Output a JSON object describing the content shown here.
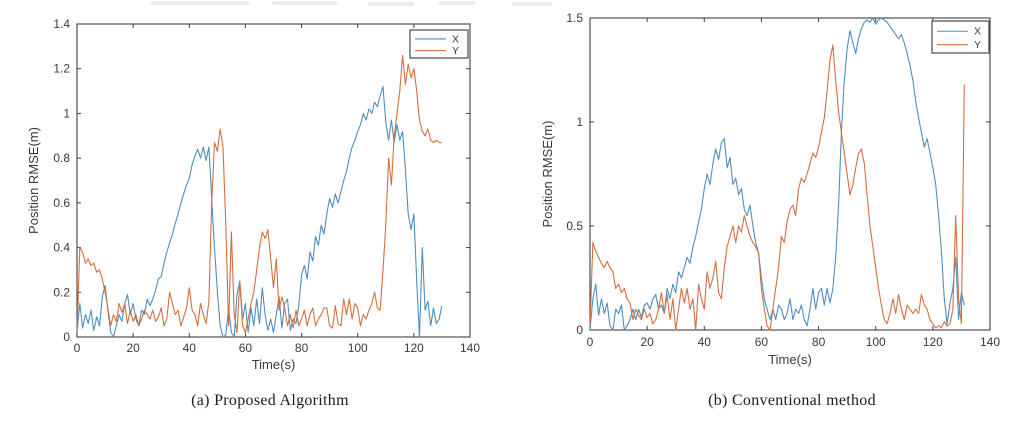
{
  "chart_data": [
    {
      "id": "proposed",
      "type": "line",
      "title": "",
      "caption": "(a) Proposed Algorithm",
      "xlabel": "Time(s)",
      "ylabel": "Position RMSE(m)",
      "xlim": [
        0,
        140
      ],
      "ylim": [
        0,
        1.4
      ],
      "xticks": [
        0,
        20,
        40,
        60,
        80,
        100,
        120,
        140
      ],
      "xtick_labels": [
        "0",
        "20",
        "40",
        "60",
        "80",
        "100",
        "120",
        "140"
      ],
      "yticks": [
        0,
        0.2,
        0.4,
        0.6,
        0.8,
        1.0,
        1.2,
        1.4
      ],
      "ytick_labels": [
        "0",
        "0.2",
        "0.4",
        "0.6",
        "0.8",
        "1",
        "1.2",
        "1.4"
      ],
      "grid": "off",
      "legend": {
        "position": "top-right",
        "entries": [
          "X",
          "Y"
        ]
      },
      "series": [
        {
          "name": "X",
          "color": "#4e8fbf",
          "x0": 0,
          "dx": 1,
          "y": [
            0.02,
            0.15,
            0.04,
            0.1,
            0.06,
            0.12,
            0.03,
            0.09,
            0.05,
            0.18,
            0.23,
            0.12,
            0.02,
            0.0,
            0.05,
            0.1,
            0.07,
            0.15,
            0.19,
            0.1,
            0.15,
            0.08,
            0.05,
            0.12,
            0.1,
            0.17,
            0.14,
            0.17,
            0.21,
            0.26,
            0.27,
            0.33,
            0.38,
            0.42,
            0.46,
            0.51,
            0.55,
            0.6,
            0.64,
            0.68,
            0.71,
            0.77,
            0.81,
            0.84,
            0.8,
            0.85,
            0.79,
            0.85,
            0.62,
            0.4,
            0.2,
            0.05,
            0.0,
            0.01,
            0.13,
            0.02,
            0.0,
            0.19,
            0.25,
            0.08,
            0.15,
            0.02,
            0.13,
            0.05,
            0.17,
            0.06,
            0.22,
            0.1,
            0.03,
            0.08,
            0.02,
            0.1,
            0.18,
            0.04,
            0.15,
            0.17,
            0.03,
            0.08,
            0.06,
            0.14,
            0.28,
            0.32,
            0.26,
            0.38,
            0.34,
            0.45,
            0.41,
            0.5,
            0.46,
            0.55,
            0.62,
            0.58,
            0.64,
            0.6,
            0.65,
            0.7,
            0.74,
            0.8,
            0.85,
            0.88,
            0.92,
            0.95,
            1.0,
            0.97,
            1.02,
            1.0,
            1.05,
            1.03,
            1.08,
            1.12,
            0.96,
            0.88,
            0.97,
            0.87,
            0.95,
            0.88,
            0.92,
            0.75,
            0.55,
            0.48,
            0.55,
            0.25,
            0.0,
            0.4,
            0.12,
            0.16,
            0.05,
            0.13,
            0.06,
            0.08,
            0.14
          ]
        },
        {
          "name": "Y",
          "color": "#d2703f",
          "x0": 0,
          "dx": 1,
          "y": [
            0.02,
            0.4,
            0.38,
            0.33,
            0.35,
            0.32,
            0.33,
            0.29,
            0.3,
            0.26,
            0.2,
            0.13,
            0.05,
            0.1,
            0.07,
            0.15,
            0.11,
            0.15,
            0.06,
            0.12,
            0.07,
            0.1,
            0.05,
            0.08,
            0.12,
            0.1,
            0.08,
            0.12,
            0.07,
            0.09,
            0.13,
            0.05,
            0.08,
            0.2,
            0.15,
            0.1,
            0.12,
            0.05,
            0.09,
            0.13,
            0.22,
            0.12,
            0.1,
            0.05,
            0.15,
            0.1,
            0.06,
            0.16,
            0.6,
            0.87,
            0.83,
            0.93,
            0.85,
            0.5,
            0.05,
            0.47,
            0.1,
            0.02,
            0.25,
            0.05,
            0.02,
            0.08,
            0.15,
            0.2,
            0.3,
            0.4,
            0.47,
            0.44,
            0.48,
            0.35,
            0.22,
            0.35,
            0.12,
            0.18,
            0.13,
            0.05,
            0.1,
            0.04,
            0.12,
            0.05,
            0.08,
            0.12,
            0.05,
            0.1,
            0.13,
            0.05,
            0.08,
            0.1,
            0.13,
            0.13,
            0.05,
            0.04,
            0.14,
            0.06,
            0.05,
            0.17,
            0.1,
            0.17,
            0.08,
            0.15,
            0.13,
            0.05,
            0.1,
            0.08,
            0.12,
            0.15,
            0.2,
            0.13,
            0.12,
            0.3,
            0.5,
            0.8,
            0.68,
            0.9,
            1.0,
            1.1,
            1.26,
            1.13,
            1.22,
            1.16,
            1.2,
            1.1,
            0.97,
            0.92,
            0.9,
            0.93,
            0.88,
            0.87,
            0.88,
            0.87,
            0.87
          ]
        }
      ]
    },
    {
      "id": "conventional",
      "type": "line",
      "title": "",
      "caption": "(b) Conventional method",
      "xlabel": "Time(s)",
      "ylabel": "Position RMSE(m)",
      "xlim": [
        0,
        140
      ],
      "ylim": [
        0,
        1.5
      ],
      "xticks": [
        0,
        20,
        40,
        60,
        80,
        100,
        120,
        140
      ],
      "xtick_labels": [
        "0",
        "20",
        "40",
        "60",
        "80",
        "100",
        "120",
        "140"
      ],
      "yticks": [
        0,
        0.5,
        1.0,
        1.5
      ],
      "ytick_labels": [
        "0",
        "0.5",
        "1",
        "1.5"
      ],
      "grid": "off",
      "legend": {
        "position": "top-right",
        "entries": [
          "X",
          "Y"
        ]
      },
      "series": [
        {
          "name": "X",
          "color": "#4e8fbf",
          "x0": 0,
          "dx": 1,
          "y": [
            0.0,
            0.15,
            0.22,
            0.07,
            0.15,
            0.08,
            0.13,
            0.02,
            0.0,
            0.1,
            0.08,
            0.12,
            0.0,
            0.02,
            0.05,
            0.1,
            0.05,
            0.1,
            0.06,
            0.12,
            0.13,
            0.1,
            0.15,
            0.17,
            0.1,
            0.12,
            0.08,
            0.2,
            0.15,
            0.22,
            0.18,
            0.28,
            0.25,
            0.3,
            0.35,
            0.32,
            0.4,
            0.45,
            0.52,
            0.58,
            0.68,
            0.75,
            0.7,
            0.8,
            0.87,
            0.82,
            0.9,
            0.92,
            0.78,
            0.83,
            0.7,
            0.73,
            0.65,
            0.68,
            0.58,
            0.55,
            0.6,
            0.5,
            0.42,
            0.37,
            0.25,
            0.15,
            0.1,
            0.05,
            0.1,
            0.05,
            0.12,
            0.1,
            0.05,
            0.08,
            0.15,
            0.05,
            0.1,
            0.08,
            0.12,
            0.05,
            0.02,
            0.1,
            0.2,
            0.1,
            0.18,
            0.2,
            0.12,
            0.2,
            0.13,
            0.2,
            0.35,
            0.6,
            0.95,
            1.2,
            1.35,
            1.44,
            1.38,
            1.33,
            1.4,
            1.45,
            1.48,
            1.49,
            1.48,
            1.5,
            1.47,
            1.49,
            1.5,
            1.49,
            1.48,
            1.46,
            1.44,
            1.42,
            1.4,
            1.42,
            1.38,
            1.33,
            1.27,
            1.2,
            1.1,
            1.02,
            0.95,
            0.88,
            0.92,
            0.85,
            0.78,
            0.7,
            0.55,
            0.38,
            0.15,
            0.03,
            0.13,
            0.2,
            0.35,
            0.05,
            0.18,
            0.12
          ]
        },
        {
          "name": "Y",
          "color": "#d2703f",
          "x0": 0,
          "dx": 1,
          "y": [
            0.02,
            0.42,
            0.38,
            0.35,
            0.32,
            0.3,
            0.33,
            0.3,
            0.28,
            0.2,
            0.22,
            0.18,
            0.2,
            0.15,
            0.13,
            0.05,
            0.1,
            0.07,
            0.05,
            0.1,
            0.06,
            0.08,
            0.03,
            0.05,
            0.1,
            0.18,
            0.08,
            0.17,
            0.05,
            0.15,
            0.0,
            0.1,
            0.2,
            0.13,
            0.2,
            0.1,
            0.15,
            0.0,
            0.22,
            0.15,
            0.1,
            0.28,
            0.2,
            0.25,
            0.33,
            0.18,
            0.15,
            0.3,
            0.4,
            0.45,
            0.5,
            0.42,
            0.5,
            0.47,
            0.55,
            0.5,
            0.45,
            0.42,
            0.4,
            0.37,
            0.2,
            0.1,
            0.02,
            0.0,
            0.1,
            0.2,
            0.3,
            0.45,
            0.42,
            0.52,
            0.58,
            0.6,
            0.55,
            0.68,
            0.73,
            0.71,
            0.75,
            0.8,
            0.85,
            0.83,
            0.88,
            0.95,
            1.02,
            1.15,
            1.3,
            1.37,
            1.2,
            1.05,
            0.95,
            0.85,
            0.75,
            0.65,
            0.7,
            0.78,
            0.85,
            0.87,
            0.8,
            0.65,
            0.5,
            0.4,
            0.3,
            0.2,
            0.12,
            0.05,
            0.03,
            0.08,
            0.15,
            0.08,
            0.17,
            0.1,
            0.05,
            0.12,
            0.1,
            0.08,
            0.1,
            0.08,
            0.17,
            0.12,
            0.1,
            0.05,
            0.03,
            0.01,
            0.02,
            0.01,
            0.04,
            0.02,
            0.03,
            0.1,
            0.55,
            0.15,
            0.03,
            1.18
          ]
        }
      ]
    }
  ],
  "style": {
    "axis_color": "#3f3f3f",
    "tick_label_color": "#3a3a3a",
    "legend_border_color": "#4a4a4a"
  }
}
